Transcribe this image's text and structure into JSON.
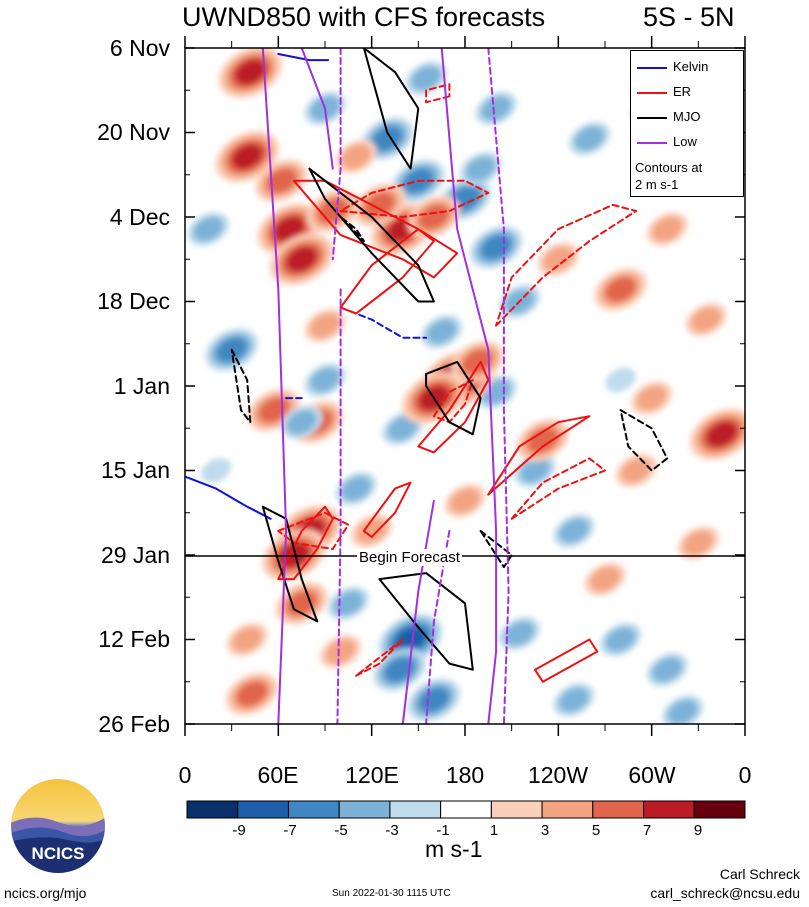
{
  "title": "UWND850 with CFS forecasts",
  "region": "5S - 5N",
  "legend": {
    "items": [
      {
        "label": "Kelvin",
        "color": "#1111dd"
      },
      {
        "label": "ER",
        "color": "#ee1111"
      },
      {
        "label": "MJO",
        "color": "#000000"
      },
      {
        "label": "Low",
        "color": "#a030e0"
      }
    ],
    "note_line1": "Contours at",
    "note_line2": "2 m s-1"
  },
  "forecast_label": "Begin Forecast",
  "colorbar": {
    "units": "m s-1",
    "tick_labels": [
      "-9",
      "-7",
      "-5",
      "-3",
      "-1",
      "1",
      "3",
      "5",
      "7",
      "9"
    ],
    "colors": [
      "#08306b",
      "#1f5ea8",
      "#3f87c2",
      "#7db2d8",
      "#c0dcec",
      "#ffffff",
      "#fbd0bb",
      "#f3a482",
      "#e0654c",
      "#bb1b25",
      "#67000d"
    ]
  },
  "logo": {
    "text": "NCICS"
  },
  "footer": {
    "url": "ncics.org/mjo",
    "timestamp": "Sun 2022-01-30 1115 UTC",
    "author": "Carl Schreck",
    "email": "carl_schreck@ncsu.edu"
  },
  "chart_data": {
    "type": "heatmap",
    "title": "UWND850 with CFS forecasts",
    "subtitle": "5S - 5N",
    "x_tick_labels": [
      "0",
      "60E",
      "120E",
      "180",
      "120W",
      "60W",
      "0"
    ],
    "x_ticks_deg": [
      0,
      60,
      120,
      180,
      240,
      300,
      360
    ],
    "y_tick_labels": [
      "6 Nov",
      "20 Nov",
      "4 Dec",
      "18 Dec",
      "1 Jan",
      "15 Jan",
      "29 Jan",
      "12 Feb",
      "26 Feb"
    ],
    "y_ticks_day": [
      0,
      14,
      28,
      42,
      56,
      70,
      84,
      98,
      112
    ],
    "forecast_start_day": 84,
    "blobs": [
      {
        "lon": 42,
        "day": 4,
        "v": 7
      },
      {
        "lon": 40,
        "day": 18,
        "v": 8
      },
      {
        "lon": 62,
        "day": 22,
        "v": 6
      },
      {
        "lon": 67,
        "day": 30,
        "v": 8
      },
      {
        "lon": 75,
        "day": 35,
        "v": 7
      },
      {
        "lon": 90,
        "day": 46,
        "v": 3
      },
      {
        "lon": 80,
        "day": 80,
        "v": 8
      },
      {
        "lon": 70,
        "day": 84,
        "v": 7
      },
      {
        "lon": 75,
        "day": 92,
        "v": 6
      },
      {
        "lon": 40,
        "day": 98,
        "v": 4
      },
      {
        "lon": 43,
        "day": 107,
        "v": 6
      },
      {
        "lon": 57,
        "day": 60,
        "v": 6
      },
      {
        "lon": 85,
        "day": 62,
        "v": 5
      },
      {
        "lon": 155,
        "day": 5,
        "v": -3
      },
      {
        "lon": 130,
        "day": 15,
        "v": -5
      },
      {
        "lon": 150,
        "day": 22,
        "v": -6
      },
      {
        "lon": 180,
        "day": 25,
        "v": -5
      },
      {
        "lon": 200,
        "day": 33,
        "v": -5
      },
      {
        "lon": 215,
        "day": 42,
        "v": -4
      },
      {
        "lon": 30,
        "day": 50,
        "v": -5
      },
      {
        "lon": 75,
        "day": 62,
        "v": -4
      },
      {
        "lon": 90,
        "day": 55,
        "v": -3
      },
      {
        "lon": 110,
        "day": 73,
        "v": -3
      },
      {
        "lon": 140,
        "day": 63,
        "v": -4
      },
      {
        "lon": 165,
        "day": 47,
        "v": -3
      },
      {
        "lon": 200,
        "day": 57,
        "v": -4
      },
      {
        "lon": 225,
        "day": 70,
        "v": -4
      },
      {
        "lon": 250,
        "day": 80,
        "v": -4
      },
      {
        "lon": 105,
        "day": 92,
        "v": -3
      },
      {
        "lon": 145,
        "day": 98,
        "v": -7
      },
      {
        "lon": 138,
        "day": 103,
        "v": -6
      },
      {
        "lon": 160,
        "day": 108,
        "v": -5
      },
      {
        "lon": 215,
        "day": 97,
        "v": -3
      },
      {
        "lon": 280,
        "day": 98,
        "v": -3
      },
      {
        "lon": 310,
        "day": 103,
        "v": -3
      },
      {
        "lon": 240,
        "day": 35,
        "v": 4
      },
      {
        "lon": 280,
        "day": 40,
        "v": 5
      },
      {
        "lon": 300,
        "day": 58,
        "v": 3
      },
      {
        "lon": 345,
        "day": 64,
        "v": 7
      },
      {
        "lon": 175,
        "day": 55,
        "v": 9
      },
      {
        "lon": 160,
        "day": 58,
        "v": 7
      },
      {
        "lon": 188,
        "day": 52,
        "v": 6
      },
      {
        "lon": 140,
        "day": 30,
        "v": 8
      },
      {
        "lon": 125,
        "day": 26,
        "v": 6
      },
      {
        "lon": 160,
        "day": 28,
        "v": 5
      },
      {
        "lon": 110,
        "day": 18,
        "v": 4
      },
      {
        "lon": 95,
        "day": 27,
        "v": 5
      },
      {
        "lon": 230,
        "day": 65,
        "v": 5
      },
      {
        "lon": 290,
        "day": 70,
        "v": 4
      },
      {
        "lon": 330,
        "day": 82,
        "v": 3
      },
      {
        "lon": 310,
        "day": 30,
        "v": 3
      },
      {
        "lon": 320,
        "day": 12,
        "v": 4
      },
      {
        "lon": 180,
        "day": 75,
        "v": 3
      },
      {
        "lon": 120,
        "day": 80,
        "v": 3
      },
      {
        "lon": 270,
        "day": 88,
        "v": 3
      },
      {
        "lon": 300,
        "day": 10,
        "v": -3
      },
      {
        "lon": 340,
        "day": 20,
        "v": -3
      },
      {
        "lon": 260,
        "day": 15,
        "v": -4
      },
      {
        "lon": 200,
        "day": 10,
        "v": -3
      },
      {
        "lon": 90,
        "day": 10,
        "v": -3
      },
      {
        "lon": 100,
        "day": 100,
        "v": 3
      },
      {
        "lon": 250,
        "day": 108,
        "v": -3
      },
      {
        "lon": 320,
        "day": 110,
        "v": -3
      },
      {
        "lon": 190,
        "day": 20,
        "v": -3
      },
      {
        "lon": 280,
        "day": 55,
        "v": -2
      },
      {
        "lon": 335,
        "day": 45,
        "v": 3
      },
      {
        "lon": 15,
        "day": 30,
        "v": -3
      },
      {
        "lon": 20,
        "day": 70,
        "v": -2
      }
    ],
    "contours": {
      "Kelvin": [
        [
          [
            60,
            1
          ],
          [
            80,
            2
          ],
          [
            92,
            2
          ]
        ],
        [
          [
            100,
            43
          ],
          [
            120,
            45
          ],
          [
            140,
            48
          ],
          [
            155,
            48
          ]
        ],
        [
          [
            0,
            71
          ],
          [
            20,
            73
          ],
          [
            40,
            76
          ],
          [
            55,
            78
          ]
        ],
        [
          [
            65,
            58
          ],
          [
            75,
            58
          ]
        ]
      ],
      "ER": [
        [
          [
            310,
            2
          ],
          [
            335,
            4
          ],
          [
            325,
            8
          ],
          [
            300,
            11
          ],
          [
            290,
            10
          ],
          [
            305,
            6
          ],
          [
            310,
            2
          ]
        ],
        [
          [
            170,
            8
          ],
          [
            155,
            9
          ],
          [
            155,
            7
          ],
          [
            170,
            6
          ],
          [
            170,
            8
          ]
        ],
        [
          [
            70,
            22
          ],
          [
            100,
            31
          ],
          [
            140,
            35
          ],
          [
            160,
            38
          ],
          [
            175,
            34
          ],
          [
            150,
            30
          ],
          [
            120,
            26
          ],
          [
            90,
            22
          ],
          [
            70,
            22
          ]
        ],
        [
          [
            100,
            27
          ],
          [
            140,
            28
          ],
          [
            170,
            27
          ],
          [
            195,
            24
          ],
          [
            180,
            22
          ],
          [
            150,
            22
          ],
          [
            120,
            24
          ],
          [
            100,
            27
          ]
        ],
        [
          [
            100,
            43
          ],
          [
            120,
            36
          ],
          [
            150,
            30
          ],
          [
            160,
            32
          ],
          [
            140,
            38
          ],
          [
            110,
            44
          ],
          [
            100,
            43
          ]
        ],
        [
          [
            200,
            46
          ],
          [
            230,
            38
          ],
          [
            260,
            32
          ],
          [
            290,
            27
          ],
          [
            275,
            26
          ],
          [
            240,
            30
          ],
          [
            210,
            38
          ],
          [
            200,
            46
          ]
        ],
        [
          [
            150,
            66
          ],
          [
            170,
            60
          ],
          [
            190,
            52
          ],
          [
            195,
            55
          ],
          [
            180,
            62
          ],
          [
            160,
            67
          ],
          [
            150,
            66
          ]
        ],
        [
          [
            180,
            59
          ],
          [
            170,
            62
          ],
          [
            160,
            61
          ],
          [
            170,
            57
          ],
          [
            185,
            55
          ],
          [
            180,
            59
          ]
        ],
        [
          [
            195,
            74
          ],
          [
            230,
            66
          ],
          [
            260,
            61
          ],
          [
            240,
            62
          ],
          [
            215,
            66
          ],
          [
            195,
            74
          ]
        ],
        [
          [
            210,
            78
          ],
          [
            240,
            73
          ],
          [
            270,
            70
          ],
          [
            260,
            68
          ],
          [
            230,
            72
          ],
          [
            210,
            78
          ]
        ],
        [
          [
            60,
            88
          ],
          [
            75,
            80
          ],
          [
            90,
            76
          ],
          [
            95,
            78
          ],
          [
            85,
            83
          ],
          [
            70,
            88
          ],
          [
            60,
            88
          ]
        ],
        [
          [
            60,
            80
          ],
          [
            90,
            77
          ],
          [
            105,
            79
          ],
          [
            95,
            83
          ],
          [
            70,
            82
          ],
          [
            60,
            80
          ]
        ],
        [
          [
            115,
            80
          ],
          [
            135,
            73
          ],
          [
            145,
            72
          ],
          [
            135,
            77
          ],
          [
            120,
            81
          ],
          [
            115,
            80
          ]
        ],
        [
          [
            110,
            104
          ],
          [
            125,
            102
          ],
          [
            140,
            98
          ],
          [
            125,
            101
          ],
          [
            110,
            104
          ]
        ],
        [
          [
            225,
            103
          ],
          [
            260,
            98
          ],
          [
            265,
            100
          ],
          [
            230,
            105
          ],
          [
            225,
            103
          ]
        ]
      ],
      "MJO": [
        [
          [
            80,
            20
          ],
          [
            120,
            28
          ],
          [
            150,
            36
          ],
          [
            160,
            42
          ],
          [
            150,
            42
          ],
          [
            120,
            34
          ],
          [
            90,
            25
          ],
          [
            80,
            20
          ]
        ],
        [
          [
            100,
            28
          ],
          [
            115,
            32
          ],
          [
            110,
            30
          ],
          [
            100,
            28
          ]
        ],
        [
          [
            155,
            54
          ],
          [
            175,
            52
          ],
          [
            190,
            58
          ],
          [
            185,
            64
          ],
          [
            170,
            62
          ],
          [
            155,
            56
          ],
          [
            155,
            54
          ]
        ],
        [
          [
            280,
            60
          ],
          [
            300,
            63
          ],
          [
            310,
            68
          ],
          [
            300,
            70
          ],
          [
            285,
            66
          ],
          [
            280,
            60
          ]
        ],
        [
          [
            50,
            76
          ],
          [
            65,
            78
          ],
          [
            75,
            88
          ],
          [
            85,
            95
          ],
          [
            70,
            93
          ],
          [
            60,
            85
          ],
          [
            50,
            76
          ]
        ],
        [
          [
            190,
            80
          ],
          [
            200,
            82
          ],
          [
            210,
            84
          ],
          [
            205,
            86
          ],
          [
            195,
            82
          ],
          [
            190,
            80
          ]
        ],
        [
          [
            115,
            0
          ],
          [
            135,
            4
          ],
          [
            150,
            10
          ],
          [
            145,
            20
          ],
          [
            130,
            14
          ],
          [
            115,
            0
          ]
        ],
        [
          [
            30,
            50
          ],
          [
            40,
            55
          ],
          [
            42,
            62
          ],
          [
            36,
            60
          ],
          [
            30,
            50
          ]
        ],
        [
          [
            125,
            88
          ],
          [
            155,
            87
          ],
          [
            180,
            92
          ],
          [
            185,
            103
          ],
          [
            170,
            102
          ],
          [
            150,
            96
          ],
          [
            125,
            88
          ]
        ]
      ],
      "Low": [
        [
          [
            75,
            0
          ],
          [
            90,
            10
          ],
          [
            95,
            20
          ]
        ],
        [
          [
            100,
            0
          ],
          [
            100,
            20
          ],
          [
            95,
            35
          ]
        ],
        [
          [
            165,
            0
          ],
          [
            175,
            30
          ],
          [
            195,
            50
          ],
          [
            200,
            80
          ],
          [
            200,
            100
          ],
          [
            195,
            112
          ]
        ],
        [
          [
            195,
            0
          ],
          [
            205,
            30
          ],
          [
            205,
            60
          ],
          [
            208,
            90
          ],
          [
            205,
            112
          ]
        ],
        [
          [
            50,
            0
          ],
          [
            60,
            40
          ],
          [
            65,
            80
          ],
          [
            60,
            112
          ]
        ],
        [
          [
            100,
            40
          ],
          [
            100,
            80
          ],
          [
            98,
            112
          ]
        ],
        [
          [
            160,
            75
          ],
          [
            150,
            90
          ],
          [
            140,
            112
          ]
        ],
        [
          [
            170,
            80
          ],
          [
            160,
            95
          ],
          [
            155,
            112
          ]
        ]
      ]
    },
    "colorbar_range": [
      -10,
      10
    ]
  }
}
